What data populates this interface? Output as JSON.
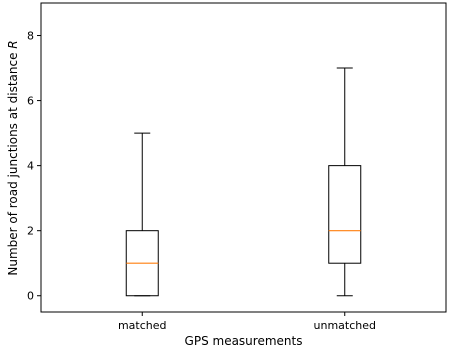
{
  "chart_data": {
    "type": "boxplot",
    "title": "",
    "xlabel": "GPS measurements",
    "ylabel_prefix": "Number of road junctions at distance ",
    "ylabel_var": "R",
    "categories": [
      "matched",
      "unmatched"
    ],
    "boxes": [
      {
        "label": "matched",
        "whislo": 0,
        "q1": 0,
        "med": 1,
        "q3": 2,
        "whishi": 5
      },
      {
        "label": "unmatched",
        "whislo": 0,
        "q1": 1,
        "med": 2,
        "q3": 4,
        "whishi": 7
      }
    ],
    "ylim": [
      -0.5,
      9
    ],
    "yticks": [
      0,
      2,
      4,
      6,
      8
    ],
    "colors": {
      "box": "#000000",
      "median": "#ff7f0e",
      "axis": "#000000",
      "background": "#ffffff"
    },
    "grid": false
  }
}
